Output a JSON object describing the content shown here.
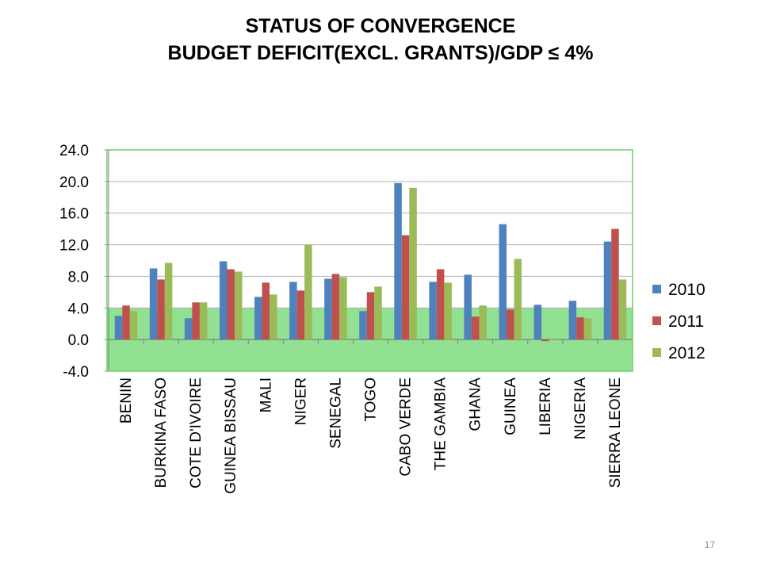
{
  "slide": {
    "title_line1": "STATUS OF CONVERGENCE",
    "title_line2": "BUDGET DEFICIT(EXCL. GRANTS)/GDP ≤ 4%",
    "page_number": "17"
  },
  "colors": {
    "band": "#92e092",
    "plot_border": "#6fcf6f",
    "grid": "#b3b3b3"
  },
  "chart_data": {
    "type": "bar",
    "title": "",
    "xlabel": "",
    "ylabel": "",
    "ylim": [
      -4.0,
      24.0
    ],
    "yticks": [
      "-4.0",
      "0.0",
      "4.0",
      "8.0",
      "12.0",
      "16.0",
      "20.0",
      "24.0"
    ],
    "grid": true,
    "legend": "right",
    "highlight_band": [
      -4.0,
      4.0
    ],
    "categories": [
      "BENIN",
      "BURKINA FASO",
      "COTE D'IVOIRE",
      "GUINEA BISSAU",
      "MALI",
      "NIGER",
      "SENEGAL",
      "TOGO",
      "CABO VERDE",
      "THE GAMBIA",
      "GHANA",
      "GUINEA",
      "LIBERIA",
      "NIGERIA",
      "SIERRA LEONE"
    ],
    "series": [
      {
        "name": "2010",
        "color": "#4f81bd",
        "values": [
          3.0,
          9.0,
          2.7,
          9.9,
          5.4,
          7.3,
          7.7,
          3.6,
          19.8,
          7.3,
          8.2,
          14.6,
          4.4,
          4.9,
          12.4
        ]
      },
      {
        "name": "2011",
        "color": "#c0504d",
        "values": [
          4.3,
          7.6,
          4.7,
          8.9,
          7.2,
          6.2,
          8.3,
          6.0,
          13.2,
          8.9,
          2.9,
          3.8,
          -0.2,
          2.8,
          14.0
        ]
      },
      {
        "name": "2012",
        "color": "#9bbb59",
        "values": [
          3.6,
          9.7,
          4.7,
          8.6,
          5.7,
          12.0,
          7.9,
          6.7,
          19.2,
          7.2,
          4.3,
          10.2,
          -0.1,
          2.7,
          7.6
        ]
      }
    ]
  }
}
